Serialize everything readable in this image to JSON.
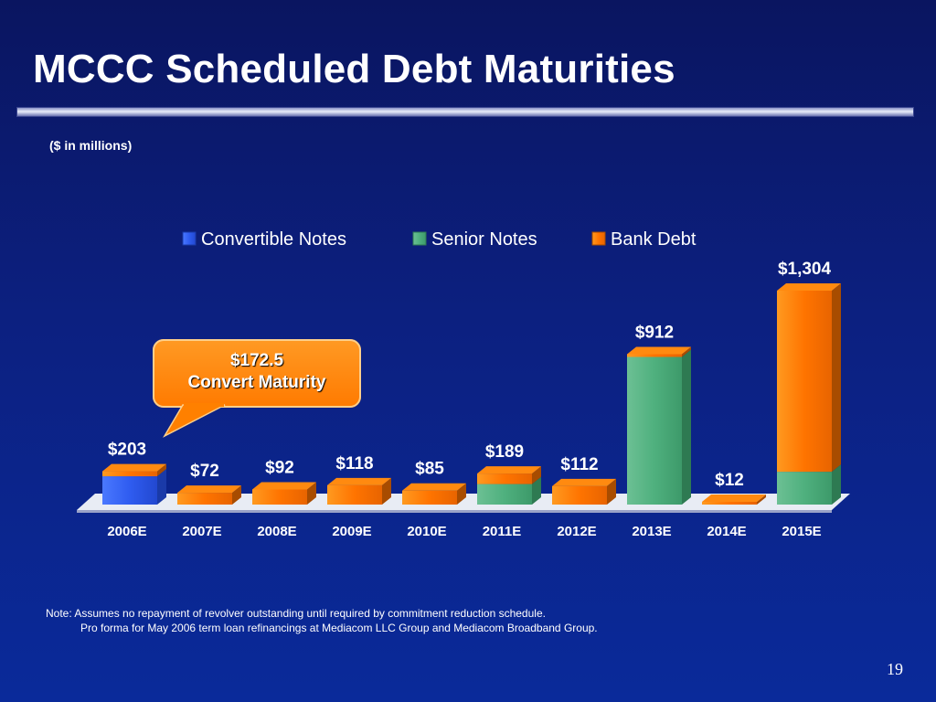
{
  "slide": {
    "title": "MCCC Scheduled Debt Maturities",
    "subtitle": "($ in millions)",
    "callout": {
      "line1": "$172.5",
      "line2": "Convert Maturity"
    },
    "note": {
      "line1": "Note:  Assumes no repayment of revolver outstanding until required by commitment reduction schedule.",
      "line2": "Pro forma for May 2006 term loan refinancings at Mediacom LLC Group and Mediacom Broadband Group."
    },
    "page_number": "19"
  },
  "colors": {
    "convertible_notes": "#2f5cf0",
    "senior_notes": "#4fb07e",
    "bank_debt": "#ff7a00"
  },
  "chart_data": {
    "type": "bar",
    "stacked": true,
    "categories": [
      "2006E",
      "2007E",
      "2008E",
      "2009E",
      "2010E",
      "2011E",
      "2012E",
      "2013E",
      "2014E",
      "2015E"
    ],
    "series": [
      {
        "name": "Convertible Notes",
        "values": [
          172.5,
          0,
          0,
          0,
          0,
          0,
          0,
          0,
          0,
          0
        ]
      },
      {
        "name": "Senior Notes",
        "values": [
          0,
          0,
          0,
          0,
          0,
          125,
          0,
          900,
          0,
          200
        ]
      },
      {
        "name": "Bank Debt",
        "values": [
          30.5,
          72,
          92,
          118,
          85,
          64,
          112,
          12,
          12,
          1104
        ]
      }
    ],
    "totals": [
      203,
      72,
      92,
      118,
      85,
      189,
      112,
      912,
      12,
      1304
    ],
    "data_labels": [
      "$203",
      "$72",
      "$92",
      "$118",
      "$85",
      "$189",
      "$112",
      "$912",
      "$12",
      "$1,304"
    ],
    "legend_position": "top",
    "ylim": [
      0,
      1304
    ],
    "grid": false
  }
}
